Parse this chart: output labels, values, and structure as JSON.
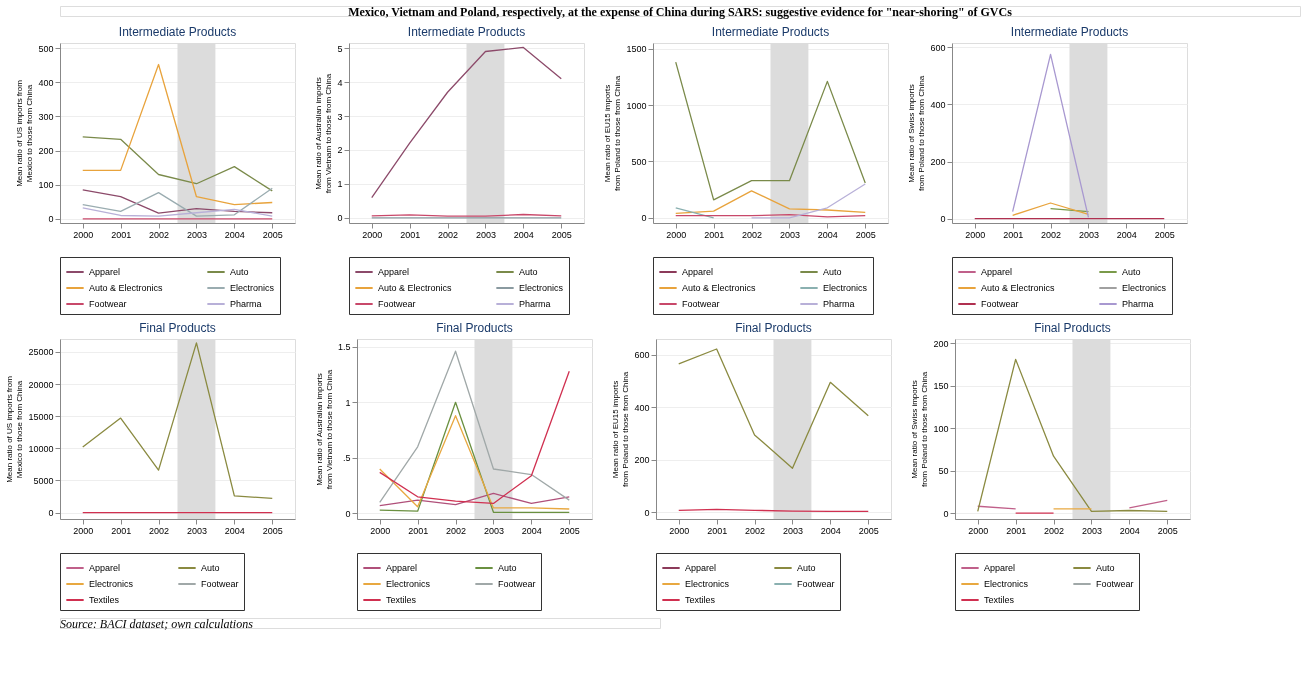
{
  "chart_data": [
    {
      "type": "line",
      "title": "Intermediate Products",
      "ylabel": "Mean ratio of US imports from Mexico to those from China",
      "annotations": [
        "Mexico, Vietnam and Poland, respectively, at the expense of China during SARS: suggestive evidence for \"near-shoring\" of GVCs"
      ],
      "x": [
        2000,
        2001,
        2002,
        2003,
        2004,
        2005
      ],
      "xlim": [
        1999.4,
        2005.6
      ],
      "xticks": [
        2000,
        2001,
        2002,
        2003,
        2004,
        2005
      ],
      "ylim": [
        -12,
        515
      ],
      "yticks": [
        0,
        100,
        200,
        300,
        400,
        500
      ],
      "grid": "y",
      "legend": "bottom",
      "bands": [
        {
          "axis": "x",
          "from": 2002.5,
          "to": 2003.5,
          "color": "#dcdcdc"
        }
      ],
      "series": [
        {
          "name": "Apparel",
          "color": "#8c4a6a",
          "values": [
            85,
            65,
            17,
            30,
            22,
            18
          ]
        },
        {
          "name": "Auto",
          "color": "#7a8a4a",
          "values": [
            240,
            233,
            130,
            103,
            153,
            82
          ]
        },
        {
          "name": "Auto & Electronics",
          "color": "#e8a33c",
          "values": [
            142,
            142,
            452,
            65,
            42,
            48
          ]
        },
        {
          "name": "Electronics",
          "color": "#9aacb0",
          "values": [
            42,
            22,
            77,
            8,
            12,
            90
          ]
        },
        {
          "name": "Footwear",
          "color": "#c8486a",
          "values": [
            0,
            0,
            0,
            0,
            0,
            0
          ]
        },
        {
          "name": "Pharma",
          "color": "#b8b0d8",
          "values": [
            32,
            10,
            8,
            18,
            28,
            8
          ]
        }
      ]
    },
    {
      "type": "line",
      "title": "Intermediate Products",
      "ylabel": "Mean ratio of Australian imports from Vietnam to those from China",
      "x": [
        2000,
        2001,
        2002,
        2003,
        2004,
        2005
      ],
      "xlim": [
        1999.4,
        2005.6
      ],
      "xticks": [
        2000,
        2001,
        2002,
        2003,
        2004,
        2005
      ],
      "ylim": [
        -0.15,
        5.15
      ],
      "yticks": [
        0,
        1,
        2,
        3,
        4,
        5
      ],
      "grid": "y",
      "legend": "bottom",
      "bands": [
        {
          "axis": "x",
          "from": 2002.5,
          "to": 2003.5,
          "color": "#dcdcdc"
        }
      ],
      "series": [
        {
          "name": "Apparel",
          "color": "#8c4a6a",
          "values": [
            0.6,
            2.2,
            3.7,
            4.9,
            5.02,
            4.1
          ]
        },
        {
          "name": "Auto",
          "color": "#7a8a4a",
          "values": [
            null,
            null,
            null,
            null,
            null,
            null
          ]
        },
        {
          "name": "Auto & Electronics",
          "color": "#e8a33c",
          "values": [
            null,
            null,
            null,
            null,
            null,
            null
          ]
        },
        {
          "name": "Electronics",
          "color": "#8a9aa0",
          "values": [
            0,
            0,
            0,
            0,
            0,
            0
          ]
        },
        {
          "name": "Footwear",
          "color": "#c8486a",
          "values": [
            0.06,
            0.09,
            0.05,
            0.05,
            0.1,
            0.06
          ]
        },
        {
          "name": "Pharma",
          "color": "#b8b0d8",
          "values": [
            null,
            null,
            null,
            null,
            null,
            null
          ]
        }
      ]
    },
    {
      "type": "line",
      "title": "Intermediate Products",
      "ylabel": "Mean ratio of EU15 imports from Poland to those from China",
      "x": [
        2000,
        2001,
        2002,
        2003,
        2004,
        2005
      ],
      "xlim": [
        1999.4,
        2005.6
      ],
      "xticks": [
        2000,
        2001,
        2002,
        2003,
        2004,
        2005
      ],
      "ylim": [
        -45,
        1550
      ],
      "yticks": [
        0,
        500,
        1000,
        1500
      ],
      "grid": "y",
      "legend": "bottom",
      "bands": [
        {
          "axis": "x",
          "from": 2002.5,
          "to": 2003.5,
          "color": "#dcdcdc"
        }
      ],
      "series": [
        {
          "name": "Apparel",
          "color": "#8c3a5a",
          "values": [
            null,
            null,
            null,
            null,
            null,
            null
          ]
        },
        {
          "name": "Auto",
          "color": "#7a8a4a",
          "values": [
            1380,
            160,
            330,
            330,
            1210,
            310
          ]
        },
        {
          "name": "Auto & Electronics",
          "color": "#e8a33c",
          "values": [
            40,
            60,
            240,
            80,
            70,
            50
          ]
        },
        {
          "name": "Electronics",
          "color": "#8ab0b0",
          "values": [
            90,
            0,
            null,
            null,
            null,
            null
          ]
        },
        {
          "name": "Footwear",
          "color": "#c8486a",
          "values": [
            20,
            20,
            20,
            30,
            10,
            20
          ]
        },
        {
          "name": "Pharma",
          "color": "#b8b0d8",
          "values": [
            null,
            null,
            0,
            0,
            90,
            300
          ]
        }
      ]
    },
    {
      "type": "line",
      "title": "Intermediate Products",
      "ylabel": "Mean ratio of Swiss imports from Poland to those from China",
      "x": [
        2000,
        2001,
        2002,
        2003,
        2004,
        2005
      ],
      "xlim": [
        1999.4,
        2005.6
      ],
      "xticks": [
        2000,
        2001,
        2002,
        2003,
        2004,
        2005
      ],
      "ylim": [
        -15,
        615
      ],
      "yticks": [
        0,
        200,
        400,
        600
      ],
      "grid": "y",
      "legend": "bottom",
      "bands": [
        {
          "axis": "x",
          "from": 2002.5,
          "to": 2003.5,
          "color": "#dcdcdc"
        }
      ],
      "series": [
        {
          "name": "Apparel",
          "color": "#c0608a",
          "values": [
            null,
            null,
            null,
            null,
            null,
            null
          ]
        },
        {
          "name": "Auto",
          "color": "#7a9a4a",
          "values": [
            null,
            null,
            35,
            25,
            null,
            null
          ]
        },
        {
          "name": "Auto & Electronics",
          "color": "#e8a33c",
          "values": [
            null,
            12,
            55,
            15,
            null,
            null
          ]
        },
        {
          "name": "Electronics",
          "color": "#a0a0a0",
          "values": [
            null,
            null,
            null,
            null,
            null,
            null
          ]
        },
        {
          "name": "Footwear",
          "color": "#b03050",
          "values": [
            0,
            0,
            0,
            0,
            0,
            0
          ]
        },
        {
          "name": "Pharma",
          "color": "#a898d0",
          "values": [
            null,
            25,
            575,
            5,
            null,
            null
          ]
        }
      ]
    },
    {
      "type": "line",
      "title": "Final Products",
      "ylabel": "Mean ratio of US imports from Mexico to those from China",
      "x": [
        2000,
        2001,
        2002,
        2003,
        2004,
        2005
      ],
      "xlim": [
        1999.4,
        2005.6
      ],
      "xticks": [
        2000,
        2001,
        2002,
        2003,
        2004,
        2005
      ],
      "ylim": [
        -1000,
        27000
      ],
      "yticks": [
        0,
        5000,
        10000,
        15000,
        20000,
        25000
      ],
      "grid": "y",
      "legend": "bottom",
      "bands": [
        {
          "axis": "x",
          "from": 2002.5,
          "to": 2003.5,
          "color": "#dcdcdc"
        }
      ],
      "series": [
        {
          "name": "Apparel",
          "color": "#c0608a",
          "values": [
            null,
            null,
            null,
            null,
            null,
            null
          ]
        },
        {
          "name": "Auto",
          "color": "#8a8a40",
          "values": [
            10200,
            14700,
            6600,
            26400,
            2600,
            2200
          ]
        },
        {
          "name": "Electronics",
          "color": "#e8a840",
          "values": [
            null,
            null,
            null,
            null,
            null,
            null
          ]
        },
        {
          "name": "Footwear",
          "color": "#a0a8a8",
          "values": [
            null,
            null,
            null,
            null,
            null,
            null
          ]
        },
        {
          "name": "Textiles",
          "color": "#d03050",
          "values": [
            0,
            0,
            0,
            0,
            0,
            0
          ]
        }
      ]
    },
    {
      "type": "line",
      "title": "Final Products",
      "ylabel": "Mean ratio of Australian imports from Vietnam to those from China",
      "x": [
        2000,
        2001,
        2002,
        2003,
        2004,
        2005
      ],
      "xlim": [
        1999.4,
        2005.6
      ],
      "xticks": [
        2000,
        2001,
        2002,
        2003,
        2004,
        2005
      ],
      "ylim": [
        -0.05,
        1.57
      ],
      "yticks": [
        0,
        {
          "value": 0.5,
          "label": ".5"
        },
        1,
        1.5
      ],
      "grid": "y",
      "legend": "bottom",
      "bands": [
        {
          "axis": "x",
          "from": 2002.5,
          "to": 2003.5,
          "color": "#dcdcdc"
        }
      ],
      "series": [
        {
          "name": "Apparel",
          "color": "#b0507a",
          "values": [
            0.07,
            0.12,
            0.08,
            0.18,
            0.09,
            0.15
          ]
        },
        {
          "name": "Auto",
          "color": "#6a9040",
          "values": [
            0.03,
            0.02,
            1.0,
            0.01,
            0.01,
            0.01
          ]
        },
        {
          "name": "Electronics",
          "color": "#e8a840",
          "values": [
            0.4,
            0.06,
            0.88,
            0.05,
            0.05,
            0.04
          ]
        },
        {
          "name": "Footwear",
          "color": "#a0a8a8",
          "values": [
            0.1,
            0.6,
            1.46,
            0.4,
            0.35,
            0.12
          ]
        },
        {
          "name": "Textiles",
          "color": "#d03050",
          "values": [
            0.37,
            0.15,
            0.11,
            0.09,
            0.34,
            1.28
          ]
        }
      ]
    },
    {
      "type": "line",
      "title": "Final Products",
      "ylabel": "Mean ratio of EU15 imports from Poland to those from China",
      "x": [
        2000,
        2001,
        2002,
        2003,
        2004,
        2005
      ],
      "xlim": [
        1999.4,
        2005.6
      ],
      "xticks": [
        2000,
        2001,
        2002,
        2003,
        2004,
        2005
      ],
      "ylim": [
        -25,
        660
      ],
      "yticks": [
        0,
        200,
        400,
        600
      ],
      "grid": "y",
      "legend": "bottom",
      "bands": [
        {
          "axis": "x",
          "from": 2002.5,
          "to": 2003.5,
          "color": "#dcdcdc"
        }
      ],
      "series": [
        {
          "name": "Apparel",
          "color": "#8c3a5a",
          "values": [
            null,
            null,
            null,
            null,
            null,
            null
          ]
        },
        {
          "name": "Auto",
          "color": "#8a8a40",
          "values": [
            565,
            622,
            295,
            168,
            495,
            368
          ]
        },
        {
          "name": "Electronics",
          "color": "#e8a840",
          "values": [
            null,
            null,
            null,
            null,
            null,
            null
          ]
        },
        {
          "name": "Footwear",
          "color": "#8ab0b0",
          "values": [
            null,
            null,
            null,
            null,
            null,
            null
          ]
        },
        {
          "name": "Textiles",
          "color": "#d03050",
          "values": [
            8,
            12,
            8,
            5,
            4,
            4
          ]
        }
      ]
    },
    {
      "type": "line",
      "title": "Final Products",
      "ylabel": "Mean ratio of Swiss imports from Poland to those from China",
      "annotations": [
        "Source: BACI dataset; own calculations"
      ],
      "x": [
        2000,
        2001,
        2002,
        2003,
        2004,
        2005
      ],
      "xlim": [
        1999.4,
        2005.6
      ],
      "xticks": [
        2000,
        2001,
        2002,
        2003,
        2004,
        2005
      ],
      "ylim": [
        -7,
        205
      ],
      "yticks": [
        0,
        50,
        100,
        150,
        200
      ],
      "grid": "y",
      "legend": "bottom",
      "bands": [
        {
          "axis": "x",
          "from": 2002.5,
          "to": 2003.5,
          "color": "#dcdcdc"
        }
      ],
      "series": [
        {
          "name": "Apparel",
          "color": "#c0608a",
          "values": [
            8,
            5,
            null,
            null,
            6,
            15
          ]
        },
        {
          "name": "Auto",
          "color": "#8a8a40",
          "values": [
            2,
            181,
            67,
            2,
            3,
            2
          ]
        },
        {
          "name": "Electronics",
          "color": "#e8a840",
          "values": [
            null,
            null,
            5,
            5,
            null,
            null
          ]
        },
        {
          "name": "Footwear",
          "color": "#a0a8a8",
          "values": [
            null,
            null,
            null,
            null,
            null,
            null
          ]
        },
        {
          "name": "Textiles",
          "color": "#d03050",
          "values": [
            null,
            0,
            0,
            null,
            null,
            null
          ]
        }
      ]
    }
  ]
}
